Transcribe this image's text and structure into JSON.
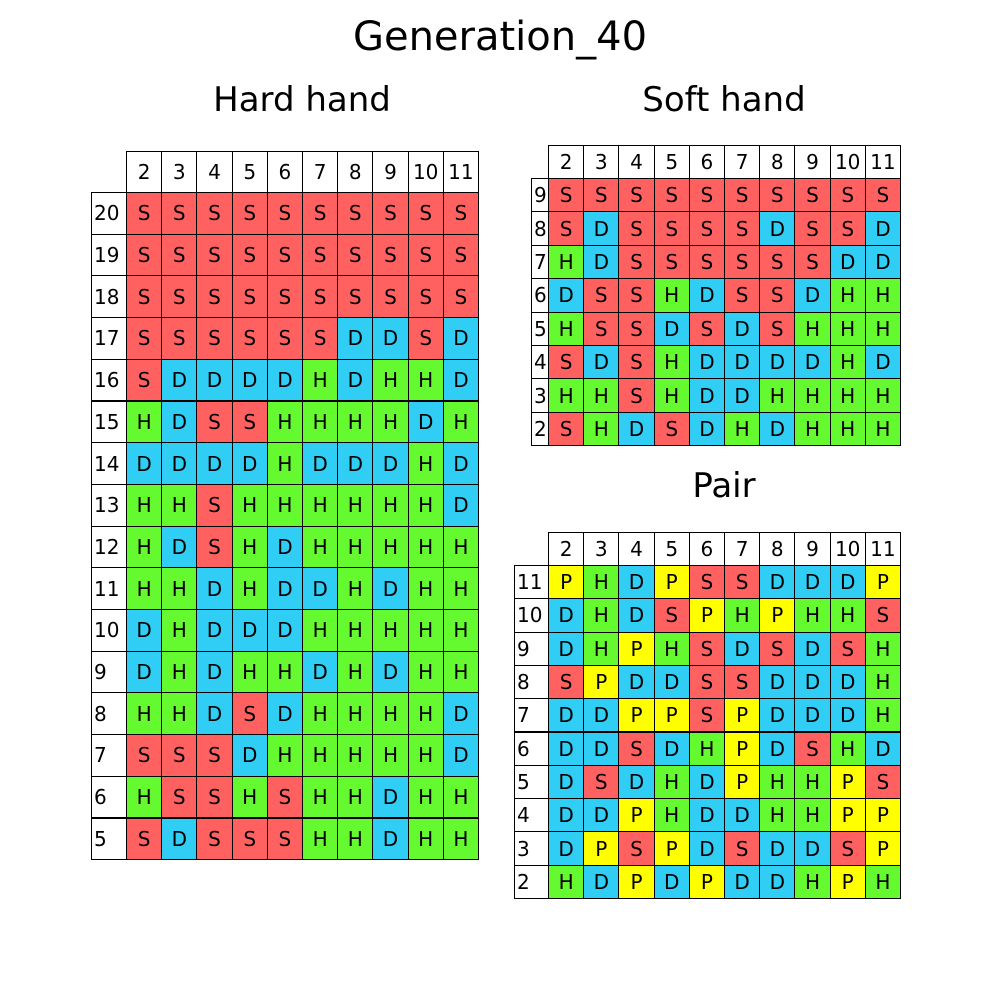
{
  "title": "Generation_40",
  "colors": {
    "S": "#ff6161",
    "D": "#30cdf5",
    "H": "#65f92f",
    "P": "#ffff00"
  },
  "chart_data": [
    {
      "type": "table",
      "title": "Hard hand",
      "columns": [
        "2",
        "3",
        "4",
        "5",
        "6",
        "7",
        "8",
        "9",
        "10",
        "11"
      ],
      "rows": [
        "20",
        "19",
        "18",
        "17",
        "16",
        "15",
        "14",
        "13",
        "12",
        "11",
        "10",
        "9",
        "8",
        "7",
        "6",
        "5"
      ],
      "cells": [
        [
          "S",
          "S",
          "S",
          "S",
          "S",
          "S",
          "S",
          "S",
          "S",
          "S"
        ],
        [
          "S",
          "S",
          "S",
          "S",
          "S",
          "S",
          "S",
          "S",
          "S",
          "S"
        ],
        [
          "S",
          "S",
          "S",
          "S",
          "S",
          "S",
          "S",
          "S",
          "S",
          "S"
        ],
        [
          "S",
          "S",
          "S",
          "S",
          "S",
          "S",
          "D",
          "D",
          "S",
          "D"
        ],
        [
          "S",
          "D",
          "D",
          "D",
          "D",
          "H",
          "D",
          "H",
          "H",
          "D"
        ],
        [
          "H",
          "D",
          "S",
          "S",
          "H",
          "H",
          "H",
          "H",
          "D",
          "H"
        ],
        [
          "D",
          "D",
          "D",
          "D",
          "H",
          "D",
          "D",
          "D",
          "H",
          "D"
        ],
        [
          "H",
          "H",
          "S",
          "H",
          "H",
          "H",
          "H",
          "H",
          "H",
          "D"
        ],
        [
          "H",
          "D",
          "S",
          "H",
          "D",
          "H",
          "H",
          "H",
          "H",
          "H"
        ],
        [
          "H",
          "H",
          "D",
          "H",
          "D",
          "D",
          "H",
          "D",
          "H",
          "H"
        ],
        [
          "D",
          "H",
          "D",
          "D",
          "D",
          "H",
          "H",
          "H",
          "H",
          "H"
        ],
        [
          "D",
          "H",
          "D",
          "H",
          "H",
          "D",
          "H",
          "D",
          "H",
          "H"
        ],
        [
          "H",
          "H",
          "D",
          "S",
          "D",
          "H",
          "H",
          "H",
          "H",
          "D"
        ],
        [
          "S",
          "S",
          "S",
          "D",
          "H",
          "H",
          "H",
          "H",
          "H",
          "D"
        ],
        [
          "H",
          "S",
          "S",
          "H",
          "S",
          "H",
          "H",
          "D",
          "H",
          "H"
        ],
        [
          "S",
          "D",
          "S",
          "S",
          "S",
          "H",
          "H",
          "D",
          "H",
          "H"
        ]
      ]
    },
    {
      "type": "table",
      "title": "Soft hand",
      "columns": [
        "2",
        "3",
        "4",
        "5",
        "6",
        "7",
        "8",
        "9",
        "10",
        "11"
      ],
      "rows": [
        "9",
        "8",
        "7",
        "6",
        "5",
        "4",
        "3",
        "2"
      ],
      "cells": [
        [
          "S",
          "S",
          "S",
          "S",
          "S",
          "S",
          "S",
          "S",
          "S",
          "S"
        ],
        [
          "S",
          "D",
          "S",
          "S",
          "S",
          "S",
          "D",
          "S",
          "S",
          "D"
        ],
        [
          "H",
          "D",
          "S",
          "S",
          "S",
          "S",
          "S",
          "S",
          "D",
          "D"
        ],
        [
          "D",
          "S",
          "S",
          "H",
          "D",
          "S",
          "S",
          "D",
          "H",
          "H"
        ],
        [
          "H",
          "S",
          "S",
          "D",
          "S",
          "D",
          "S",
          "H",
          "H",
          "H"
        ],
        [
          "S",
          "D",
          "S",
          "H",
          "D",
          "D",
          "D",
          "D",
          "H",
          "D"
        ],
        [
          "H",
          "H",
          "S",
          "H",
          "D",
          "D",
          "H",
          "H",
          "H",
          "H"
        ],
        [
          "S",
          "H",
          "D",
          "S",
          "D",
          "H",
          "D",
          "H",
          "H",
          "H"
        ]
      ]
    },
    {
      "type": "table",
      "title": "Pair",
      "columns": [
        "2",
        "3",
        "4",
        "5",
        "6",
        "7",
        "8",
        "9",
        "10",
        "11"
      ],
      "rows": [
        "11",
        "10",
        "9",
        "8",
        "7",
        "6",
        "5",
        "4",
        "3",
        "2"
      ],
      "cells": [
        [
          "P",
          "H",
          "D",
          "P",
          "S",
          "S",
          "D",
          "D",
          "D",
          "P"
        ],
        [
          "D",
          "H",
          "D",
          "S",
          "P",
          "H",
          "P",
          "H",
          "H",
          "S"
        ],
        [
          "D",
          "H",
          "P",
          "H",
          "S",
          "D",
          "S",
          "D",
          "S",
          "H"
        ],
        [
          "S",
          "P",
          "D",
          "D",
          "S",
          "S",
          "D",
          "D",
          "D",
          "H"
        ],
        [
          "D",
          "D",
          "P",
          "P",
          "S",
          "P",
          "D",
          "D",
          "D",
          "H"
        ],
        [
          "D",
          "D",
          "S",
          "D",
          "H",
          "P",
          "D",
          "S",
          "H",
          "D"
        ],
        [
          "D",
          "S",
          "D",
          "H",
          "D",
          "P",
          "H",
          "H",
          "P",
          "S"
        ],
        [
          "D",
          "D",
          "P",
          "H",
          "D",
          "D",
          "H",
          "H",
          "P",
          "P"
        ],
        [
          "D",
          "P",
          "S",
          "P",
          "D",
          "S",
          "D",
          "D",
          "S",
          "P"
        ],
        [
          "H",
          "D",
          "P",
          "D",
          "P",
          "D",
          "D",
          "H",
          "P",
          "H"
        ]
      ]
    }
  ]
}
